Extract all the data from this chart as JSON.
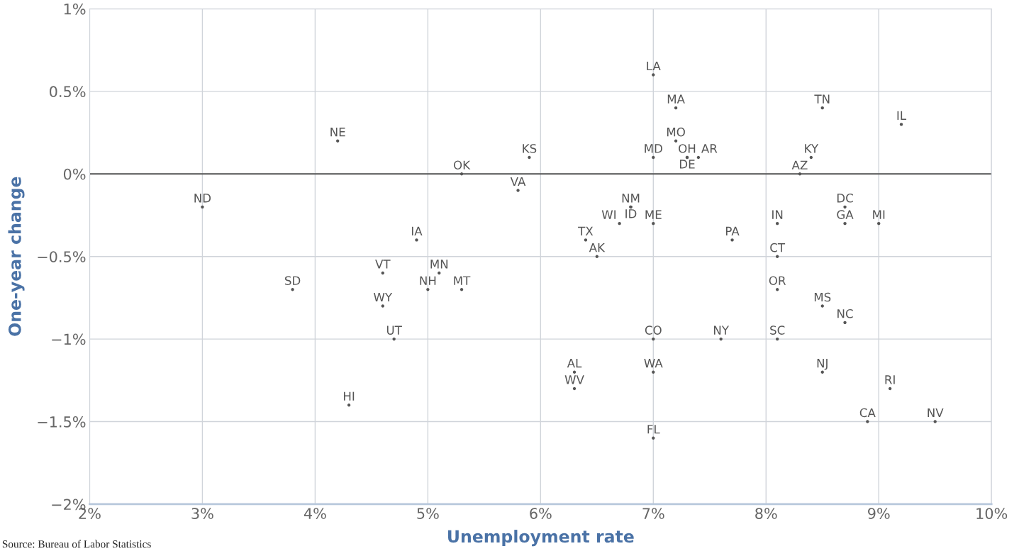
{
  "chart_data": {
    "type": "scatter",
    "xlabel": "Unemployment rate",
    "ylabel": "One-year change",
    "x": [
      7.0,
      7.2,
      8.5,
      9.2,
      7.2,
      8.4,
      7.0,
      7.3,
      7.3,
      7.4,
      5.9,
      4.2,
      5.3,
      8.3,
      5.8,
      3.0,
      6.8,
      6.8,
      8.7,
      6.7,
      7.0,
      8.1,
      8.7,
      9.0,
      4.9,
      6.4,
      7.7,
      6.5,
      8.1,
      4.6,
      5.1,
      3.8,
      5.0,
      5.3,
      8.1,
      4.6,
      8.5,
      8.7,
      4.7,
      7.0,
      7.6,
      8.1,
      6.3,
      7.0,
      8.5,
      6.3,
      9.1,
      4.3,
      8.9,
      9.5,
      7.0
    ],
    "values": [
      0.6,
      0.4,
      0.4,
      0.3,
      0.2,
      0.1,
      0.1,
      0.1,
      0.1,
      0.1,
      0.1,
      0.2,
      0.0,
      0.0,
      -0.1,
      -0.2,
      -0.2,
      -0.2,
      -0.2,
      -0.3,
      -0.3,
      -0.3,
      -0.3,
      -0.3,
      -0.4,
      -0.4,
      -0.4,
      -0.5,
      -0.5,
      -0.6,
      -0.6,
      -0.7,
      -0.7,
      -0.7,
      -0.7,
      -0.8,
      -0.8,
      -0.9,
      -1.0,
      -1.0,
      -1.0,
      -1.0,
      -1.2,
      -1.2,
      -1.2,
      -1.3,
      -1.3,
      -1.4,
      -1.5,
      -1.5,
      -1.6
    ],
    "value_labels": [
      "LA",
      "MA",
      "TN",
      "IL",
      "MO",
      "KY",
      "MD",
      "OH",
      "DE",
      "AR",
      "KS",
      "NE",
      "OK",
      "AZ",
      "VA",
      "ND",
      "NM",
      "ID",
      "DC",
      "WI",
      "ME",
      "IN",
      "GA",
      "MI",
      "IA",
      "TX",
      "PA",
      "AK",
      "CT",
      "VT",
      "MN",
      "SD",
      "NH",
      "MT",
      "OR",
      "WY",
      "MS",
      "NC",
      "UT",
      "CO",
      "NY",
      "SC",
      "AL",
      "WA",
      "NJ",
      "WV",
      "RI",
      "HI",
      "CA",
      "NV",
      "FL"
    ],
    "marker": "circle",
    "color": "#555555",
    "xlim": [
      2,
      10
    ],
    "xticks": [
      {
        "value": 2,
        "label": "2%"
      },
      {
        "value": 3,
        "label": "3%"
      },
      {
        "value": 4,
        "label": "4%"
      },
      {
        "value": 5,
        "label": "5%"
      },
      {
        "value": 6,
        "label": "6%"
      },
      {
        "value": 7,
        "label": "7%"
      },
      {
        "value": 8,
        "label": "8%"
      },
      {
        "value": 9,
        "label": "9%"
      },
      {
        "value": 10,
        "label": "10%"
      }
    ],
    "ylim": [
      -2,
      1
    ],
    "yticks": [
      {
        "value": -2,
        "label": "−2%"
      },
      {
        "value": -1.5,
        "label": "−1.5%"
      },
      {
        "value": -1,
        "label": "−1%"
      },
      {
        "value": -0.5,
        "label": "−0.5%"
      },
      {
        "value": 0,
        "label": "0%"
      },
      {
        "value": 0.5,
        "label": "0.5%"
      },
      {
        "value": 1,
        "label": "1%"
      }
    ],
    "grid": true,
    "ref_lines": [
      {
        "axis": "y",
        "value": 0,
        "color": "#555555"
      }
    ],
    "annotations": [
      "Source: Bureau of Labor Statistics"
    ]
  }
}
